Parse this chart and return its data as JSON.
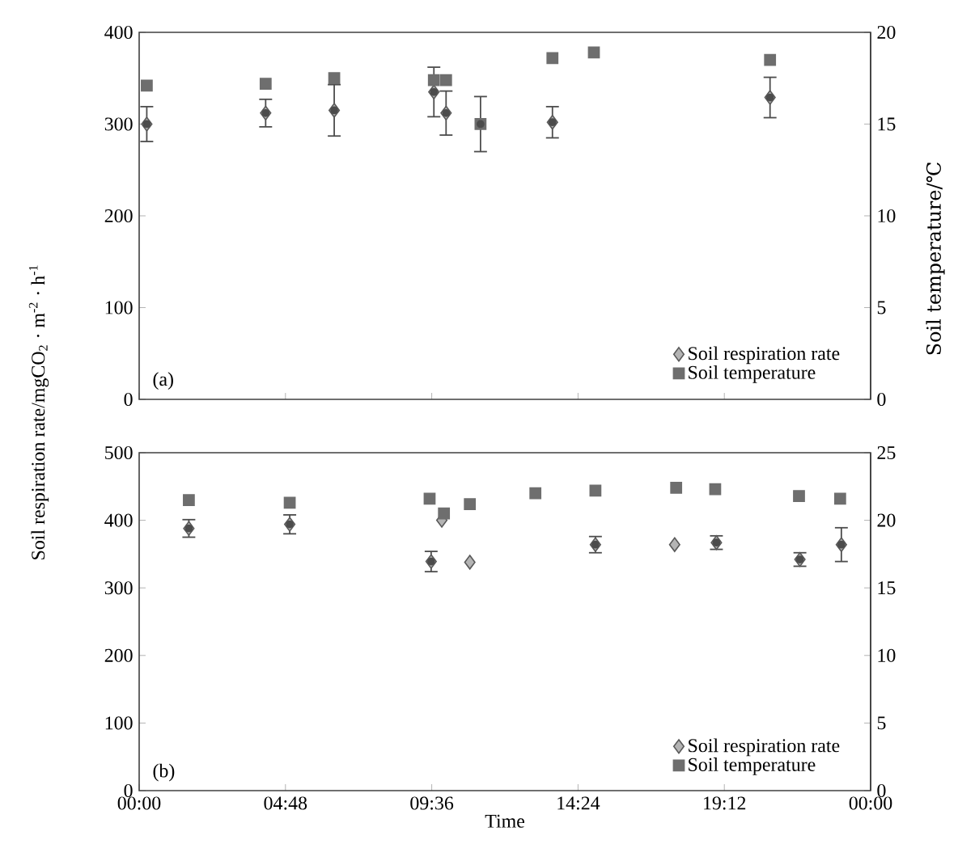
{
  "chart_data": [
    {
      "type": "scatter",
      "ylabel": "Soil respiration rate/mgCO$_{2}$ · m$^{-2}$ · h$^{-1}$",
      "y2label": "Soil temperature/℃",
      "annotations": [
        "(a)"
      ],
      "xlim": [
        0,
        24
      ],
      "xticks": [
        {
          "value": 0,
          "label": null
        },
        {
          "value": 4.8,
          "label": null
        },
        {
          "value": 9.6,
          "label": null
        },
        {
          "value": 14.4,
          "label": null
        },
        {
          "value": 19.2,
          "label": null
        },
        {
          "value": 24,
          "label": null
        }
      ],
      "ylim": [
        0,
        400
      ],
      "yticks": [
        0,
        100,
        200,
        300,
        400
      ],
      "y2lim": [
        0,
        20
      ],
      "y2ticks": [
        0,
        5,
        10,
        15,
        20
      ],
      "tick_labels": "y",
      "legend": "bottom right",
      "series": [
        {
          "name": "Soil respiration rate",
          "color": "#b4b4b4",
          "marker": "diamond",
          "x": [
            0.25,
            4.15,
            6.4,
            9.67,
            10.07,
            13.56,
            14.92,
            20.7
          ],
          "values": [
            300,
            312,
            315,
            335,
            312,
            302,
            null,
            329
          ],
          "errors": [
            19,
            15,
            28,
            27,
            24,
            17,
            null,
            22
          ]
        },
        {
          "name": "Soil temperature",
          "color": "#6e6e6e",
          "marker": "square",
          "axis": "y2",
          "x": [
            0.25,
            4.15,
            6.4,
            9.67,
            10.07,
            11.2,
            13.56,
            14.92,
            20.7
          ],
          "values": [
            17.1,
            17.2,
            17.5,
            17.4,
            17.4,
            15.0,
            18.6,
            18.9,
            18.5
          ],
          "errors": [
            null,
            null,
            null,
            null,
            null,
            1.5,
            null,
            null,
            null
          ]
        }
      ]
    },
    {
      "type": "scatter",
      "xlabel": "Time",
      "annotations": [
        "(b)"
      ],
      "xlim": [
        0,
        24
      ],
      "xticks": [
        {
          "value": 0,
          "label": "00:00"
        },
        {
          "value": 4.8,
          "label": "04:48"
        },
        {
          "value": 9.6,
          "label": "09:36"
        },
        {
          "value": 14.4,
          "label": "14:24"
        },
        {
          "value": 19.2,
          "label": "19:12"
        },
        {
          "value": 24,
          "label": "00:00"
        }
      ],
      "ylim": [
        0,
        500
      ],
      "yticks": [
        0,
        100,
        200,
        300,
        400,
        500
      ],
      "y2lim": [
        0,
        25
      ],
      "y2ticks": [
        0,
        5,
        10,
        15,
        20,
        25
      ],
      "legend": "bottom right",
      "series": [
        {
          "name": "Soil respiration rate",
          "color": "#b4b4b4",
          "marker": "diamond",
          "x": [
            1.63,
            4.94,
            9.58,
            9.93,
            10.85,
            14.97,
            17.57,
            18.94,
            21.68,
            23.04
          ],
          "values": [
            388,
            394,
            339,
            400,
            338,
            364,
            364,
            367,
            342,
            364
          ],
          "errors": [
            13,
            14,
            15,
            null,
            null,
            12,
            null,
            10,
            10,
            25
          ]
        },
        {
          "name": "Soil temperature",
          "color": "#6e6e6e",
          "marker": "square",
          "axis": "y2",
          "x": [
            1.63,
            4.94,
            9.53,
            10.0,
            10.85,
            13.0,
            14.97,
            17.62,
            18.9,
            21.65,
            23.0
          ],
          "values": [
            21.5,
            21.3,
            21.6,
            20.5,
            21.2,
            22.0,
            22.2,
            22.4,
            22.3,
            21.8,
            21.6
          ]
        }
      ]
    }
  ]
}
